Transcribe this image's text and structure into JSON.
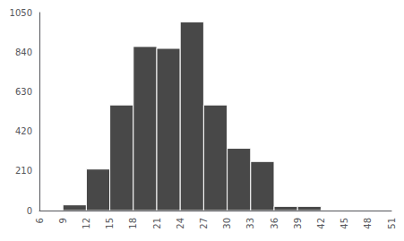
{
  "chart_data": {
    "type": "histogram",
    "bins": [
      6,
      9,
      12,
      15,
      18,
      21,
      24,
      27,
      30,
      33,
      36,
      39,
      42,
      45,
      48,
      51
    ],
    "values": [
      0,
      30,
      220,
      560,
      870,
      860,
      1000,
      560,
      330,
      260,
      22,
      22,
      0,
      0,
      0
    ],
    "color": "#484848",
    "xlim": [
      6,
      51
    ],
    "xticks": [
      6,
      9,
      12,
      15,
      18,
      21,
      24,
      27,
      30,
      33,
      36,
      39,
      42,
      45,
      48,
      51
    ],
    "ylim": [
      0,
      1050
    ],
    "yticks": [
      0,
      210,
      420,
      630,
      840,
      1050
    ],
    "grid": false
  }
}
